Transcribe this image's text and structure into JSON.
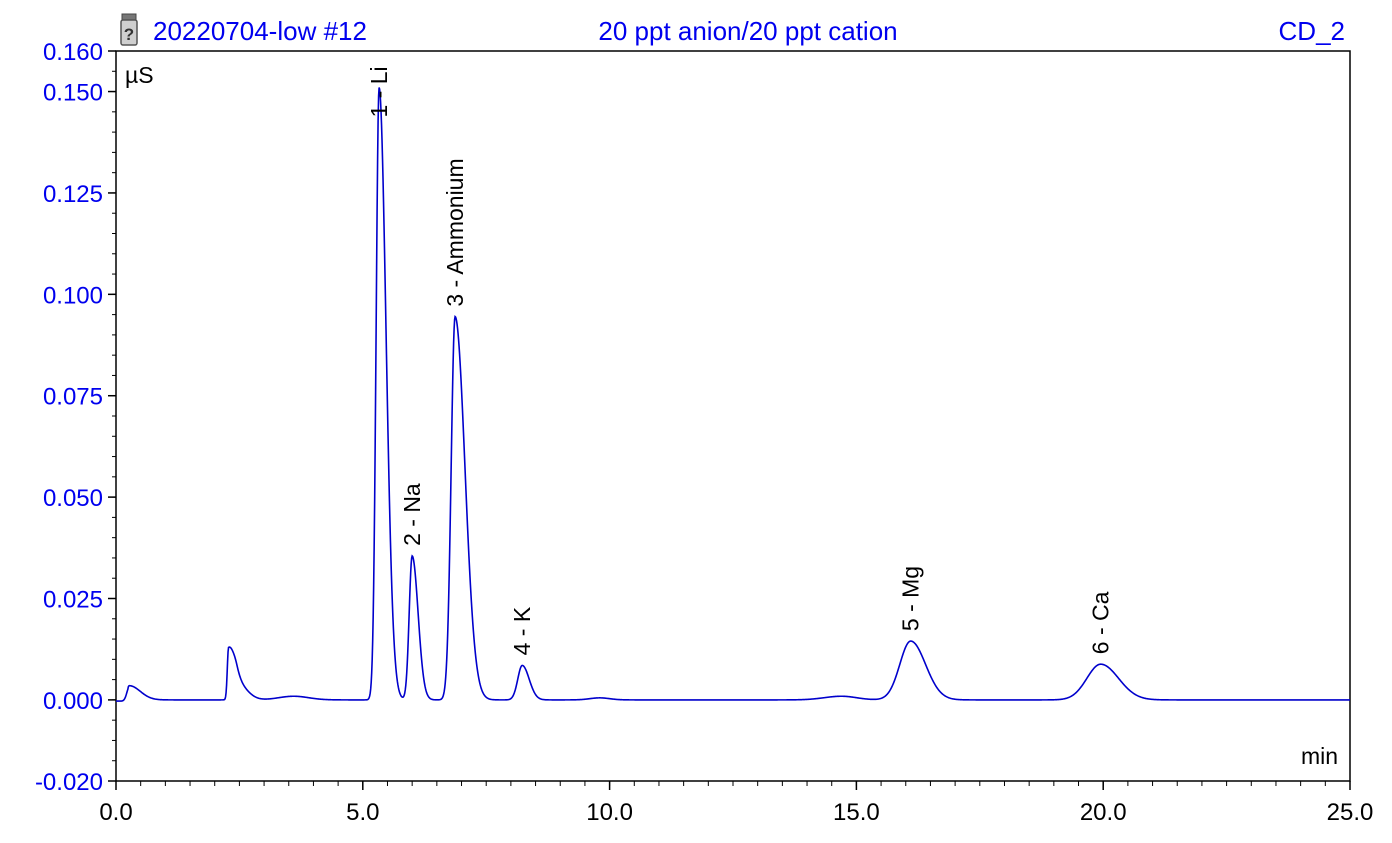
{
  "header": {
    "sample": "20220704-low #12",
    "description": "20 ppt anion/20 ppt cation",
    "channel": "CD_2",
    "sample_icon": "vial-question-icon"
  },
  "colors": {
    "accent": "#0000ee",
    "trace": "#0000cc",
    "axis": "#000000",
    "background": "#ffffff"
  },
  "chart_data": {
    "type": "line",
    "ylabel": "µS",
    "xlabel": "min",
    "xlim": [
      0,
      25
    ],
    "ylim": [
      -0.02,
      0.16
    ],
    "xticks": [
      "0.0",
      "5.0",
      "10.0",
      "15.0",
      "20.0",
      "25.0"
    ],
    "xtick_values": [
      0,
      5,
      10,
      15,
      20,
      25
    ],
    "yticks": [
      "0.160",
      "0.150",
      "0.125",
      "0.100",
      "0.075",
      "0.050",
      "0.025",
      "0.000",
      "-0.020"
    ],
    "ytick_values": [
      0.16,
      0.15,
      0.125,
      0.1,
      0.075,
      0.05,
      0.025,
      0.0,
      -0.02
    ],
    "grid": false,
    "baseline": 0.0,
    "peaks": [
      {
        "label": "1 - Li",
        "rt": 5.33,
        "height": 0.151,
        "width": 0.06,
        "tail": 0.14
      },
      {
        "label": "2 - Na",
        "rt": 6.0,
        "height": 0.0355,
        "width": 0.06,
        "tail": 0.12
      },
      {
        "label": "3 - Ammonium",
        "rt": 6.87,
        "height": 0.0945,
        "width": 0.08,
        "tail": 0.2
      },
      {
        "label": "4 - K",
        "rt": 8.23,
        "height": 0.0085,
        "width": 0.09,
        "tail": 0.14
      },
      {
        "label": "5 - Mg",
        "rt": 16.1,
        "height": 0.0145,
        "width": 0.22,
        "tail": 0.3
      },
      {
        "label": "6 - Ca",
        "rt": 19.95,
        "height": 0.0088,
        "width": 0.28,
        "tail": 0.36
      }
    ],
    "minor_features": [
      {
        "rt": 0.27,
        "height": 0.0035,
        "width": 0.05,
        "tail": 0.22
      },
      {
        "rt": 2.28,
        "height": 0.0125,
        "width": 0.025,
        "tail": 0.12
      },
      {
        "rt": 2.45,
        "height": 0.004,
        "width": 0.08,
        "tail": 0.2
      },
      {
        "rt": 3.6,
        "height": 0.0009,
        "width": 0.3,
        "tail": 0.3
      },
      {
        "rt": 9.8,
        "height": 0.0005,
        "width": 0.2,
        "tail": 0.2
      },
      {
        "rt": 14.7,
        "height": 0.0009,
        "width": 0.35,
        "tail": 0.3
      }
    ]
  }
}
